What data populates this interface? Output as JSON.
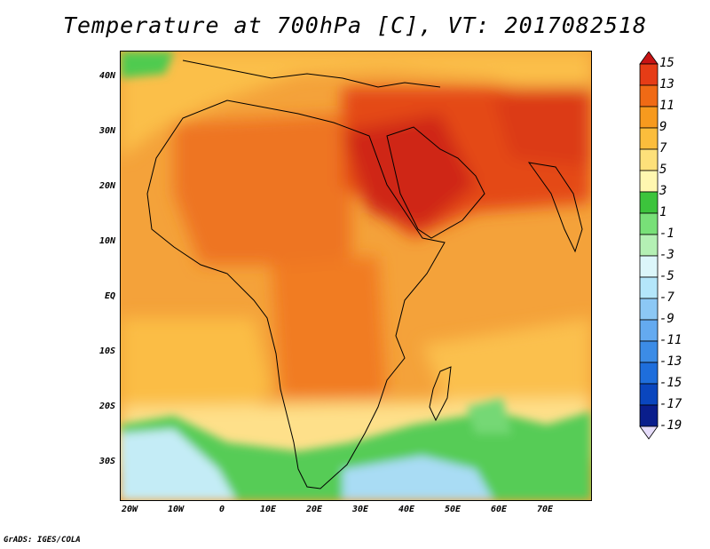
{
  "title": "Temperature at 700hPa [C], VT: 2017082518",
  "credit": "GrADS: IGES/COLA",
  "lat_labels": [
    "40N",
    "30N",
    "20N",
    "10N",
    "EQ",
    "10S",
    "20S",
    "30S"
  ],
  "lon_labels": [
    "20W",
    "10W",
    "0",
    "10E",
    "20E",
    "30E",
    "40E",
    "50E",
    "60E",
    "70E"
  ],
  "colorbar": {
    "labels": [
      "15",
      "13",
      "11",
      "9",
      "7",
      "5",
      "3",
      "1",
      "-1",
      "-3",
      "-5",
      "-7",
      "-9",
      "-11",
      "-13",
      "-15",
      "-17",
      "-19"
    ],
    "colors": [
      "#d21f1f",
      "#e63c16",
      "#f06a15",
      "#f79a1e",
      "#fbbd3c",
      "#fde07a",
      "#fff7b0",
      "#3cc43c",
      "#78e078",
      "#b4f0b4",
      "#dcf6fa",
      "#b4e6fa",
      "#8cc8f5",
      "#64aaf0",
      "#3c8ce6",
      "#1e6edc",
      "#0a46be",
      "#0a1e8c",
      "#e6dcfa"
    ],
    "top_arrow_color": "#c81414",
    "bottom_arrow_color": "#e6dcfa"
  }
}
